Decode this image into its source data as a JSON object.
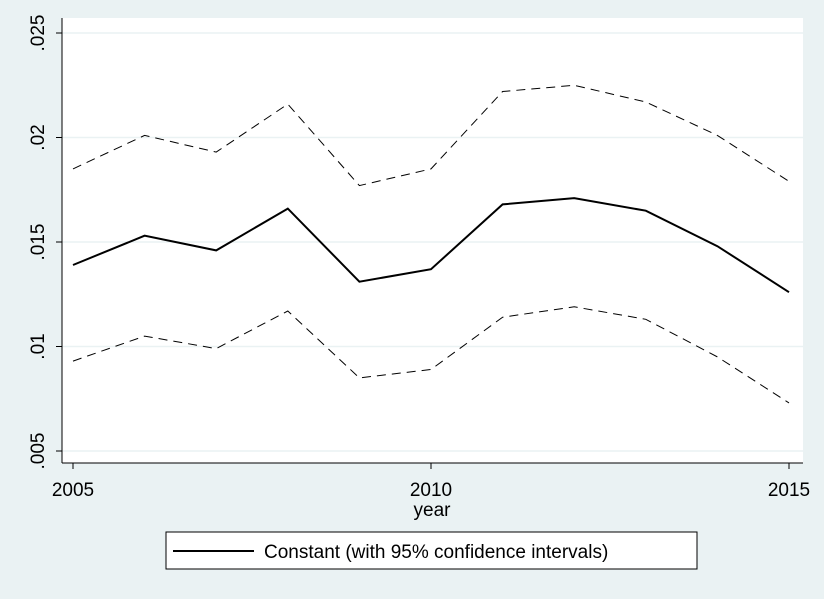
{
  "chart_data": {
    "type": "line",
    "title": "",
    "xlabel": "year",
    "ylabel": "",
    "xlim": [
      2005,
      2015
    ],
    "ylim": [
      0.005,
      0.025
    ],
    "x_ticks": [
      2005,
      2010,
      2015
    ],
    "x_tick_labels": [
      "2005",
      "2010",
      "2015"
    ],
    "y_ticks": [
      0.005,
      0.01,
      0.015,
      0.02,
      0.025
    ],
    "y_tick_labels": [
      ".005",
      ".01",
      ".015",
      ".02",
      ".025"
    ],
    "grid": true,
    "legend_position": "bottom",
    "x": [
      2005,
      2006,
      2007,
      2008,
      2009,
      2010,
      2011,
      2012,
      2013,
      2014,
      2015
    ],
    "series": [
      {
        "name": "Constant (with 95% confidence intervals)",
        "style": "solid",
        "values": [
          0.0139,
          0.0153,
          0.0146,
          0.0166,
          0.0131,
          0.0137,
          0.0168,
          0.0171,
          0.0165,
          0.0148,
          0.0126
        ]
      },
      {
        "style": "dashed",
        "values": [
          0.0185,
          0.0201,
          0.0193,
          0.0216,
          0.0177,
          0.0185,
          0.0222,
          0.0225,
          0.0217,
          0.0201,
          0.0179
        ]
      },
      {
        "style": "dashed",
        "values": [
          0.0093,
          0.0105,
          0.0099,
          0.0117,
          0.0085,
          0.0089,
          0.0114,
          0.0119,
          0.0113,
          0.0095,
          0.0073
        ]
      }
    ]
  },
  "colors": {
    "page_background": "#eaf2f3",
    "plot_background": "#ffffff",
    "gridline": "#eaf2f3",
    "line": "#000000"
  }
}
